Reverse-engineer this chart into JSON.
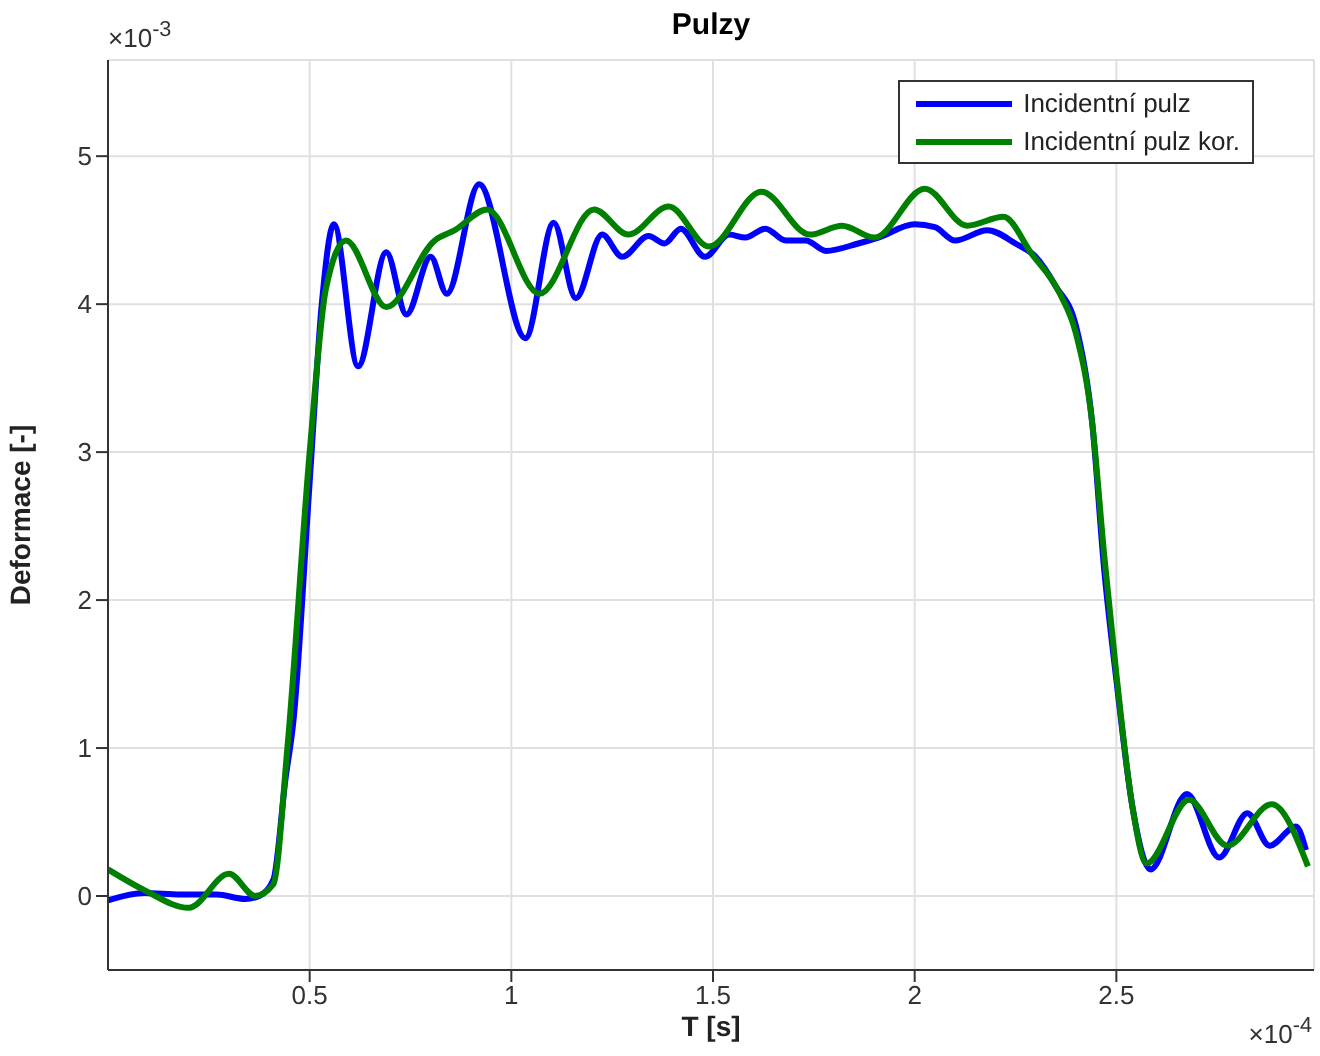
{
  "chart_data": {
    "type": "line",
    "title": "Pulzy",
    "xlabel": "T [s]",
    "ylabel": "Deformace [-]",
    "xlim": [
      0,
      2.99
    ],
    "ylim": [
      -0.5,
      5.65
    ],
    "xticks": [
      0.5,
      1,
      1.5,
      2,
      2.5
    ],
    "yticks": [
      0,
      1,
      2,
      3,
      4,
      5
    ],
    "grid": true,
    "legend": "top right",
    "marker": "none",
    "line_style": "solid",
    "annotations": [
      "×10$^{-3}$",
      "×10$^{-4}$"
    ],
    "series": [
      {
        "name": "Incidentní pulz",
        "color": "#0000ff",
        "x": [
          0,
          0.09,
          0.18,
          0.27,
          0.34,
          0.375,
          0.41,
          0.44,
          0.46,
          0.5,
          0.53,
          0.56,
          0.62,
          0.69,
          0.74,
          0.8,
          0.84,
          0.92,
          1.035,
          1.105,
          1.16,
          1.225,
          1.275,
          1.34,
          1.38,
          1.42,
          1.48,
          1.54,
          1.58,
          1.63,
          1.68,
          1.73,
          1.78,
          1.86,
          1.91,
          2.0,
          2.05,
          2.1,
          2.18,
          2.25,
          2.3,
          2.35,
          2.4,
          2.44,
          2.47,
          2.5,
          2.54,
          2.585,
          2.675,
          2.755,
          2.825,
          2.88,
          2.945,
          2.97
        ],
        "values": [
          -0.03,
          0.02,
          0.01,
          0.01,
          -0.02,
          0,
          0.11,
          0.79,
          1.19,
          2.8,
          4.0,
          4.54,
          3.58,
          4.35,
          3.93,
          4.32,
          4.07,
          4.81,
          3.77,
          4.55,
          4.04,
          4.47,
          4.32,
          4.46,
          4.41,
          4.51,
          4.32,
          4.47,
          4.45,
          4.51,
          4.43,
          4.43,
          4.36,
          4.41,
          4.45,
          4.54,
          4.52,
          4.43,
          4.5,
          4.41,
          4.32,
          4.12,
          3.85,
          3.2,
          2.2,
          1.46,
          0.6,
          0.18,
          0.69,
          0.26,
          0.56,
          0.34,
          0.47,
          0.31
        ]
      },
      {
        "name": "Incidentní pulz kor.",
        "color": "#008000",
        "x": [
          0,
          0.09,
          0.2,
          0.3,
          0.365,
          0.41,
          0.445,
          0.5,
          0.54,
          0.59,
          0.69,
          0.81,
          0.86,
          0.94,
          1.07,
          1.205,
          1.29,
          1.39,
          1.49,
          1.62,
          1.74,
          1.82,
          1.9,
          2.025,
          2.13,
          2.22,
          2.29,
          2.36,
          2.4,
          2.44,
          2.47,
          2.5,
          2.54,
          2.575,
          2.68,
          2.775,
          2.885,
          2.975
        ],
        "values": [
          0.18,
          0.04,
          -0.08,
          0.15,
          0,
          0.08,
          1.01,
          3.0,
          4.1,
          4.43,
          3.98,
          4.43,
          4.5,
          4.64,
          4.07,
          4.64,
          4.47,
          4.66,
          4.39,
          4.76,
          4.47,
          4.53,
          4.45,
          4.78,
          4.53,
          4.59,
          4.34,
          4.07,
          3.8,
          3.2,
          2.3,
          1.5,
          0.6,
          0.22,
          0.65,
          0.34,
          0.62,
          0.2
        ]
      }
    ]
  }
}
